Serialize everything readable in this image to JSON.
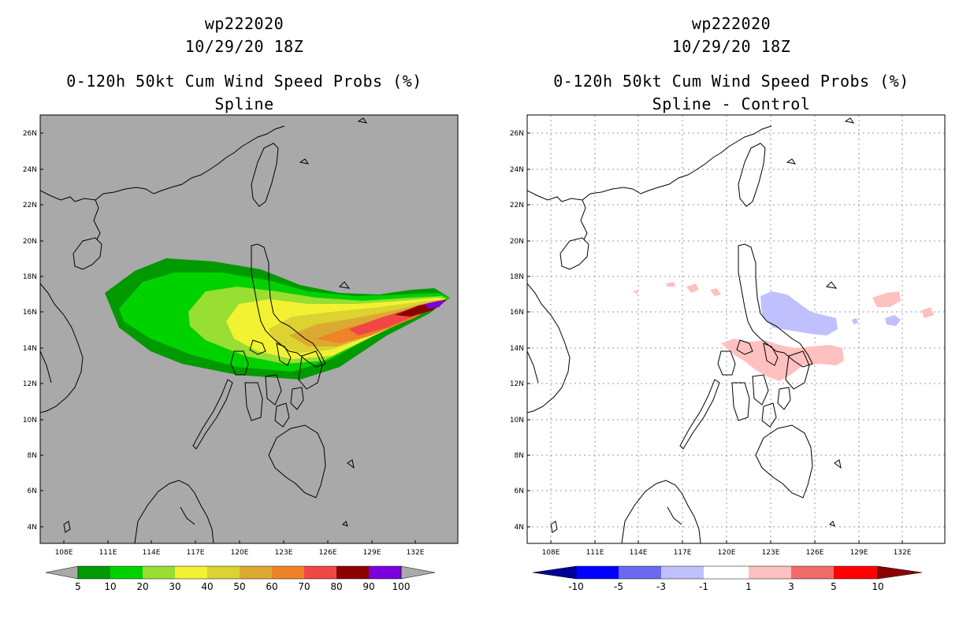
{
  "panels": [
    {
      "storm_id": "wp222020",
      "datetime": "10/29/20 18Z",
      "product": "0-120h 50kt Cum Wind Speed Probs (%)",
      "subtitle": "Spline",
      "background": "#a9a9a9"
    },
    {
      "storm_id": "wp222020",
      "datetime": "10/29/20 18Z",
      "product": "0-120h 50kt Cum Wind Speed Probs (%)",
      "subtitle": "Spline - Control",
      "background": "#ffffff"
    }
  ],
  "axes": {
    "lon_labels": [
      "108E",
      "111E",
      "114E",
      "117E",
      "120E",
      "123E",
      "126E",
      "129E",
      "132E"
    ],
    "lat_labels": [
      "26N",
      "24N",
      "22N",
      "20N",
      "18N",
      "16N",
      "14N",
      "12N",
      "10N",
      "8N",
      "6N",
      "4N"
    ]
  },
  "colorbar_left": {
    "labels": [
      "5",
      "10",
      "20",
      "30",
      "40",
      "50",
      "60",
      "70",
      "80",
      "90",
      "100"
    ],
    "colors": [
      "#009a00",
      "#00d200",
      "#99de32",
      "#f2f232",
      "#dcd232",
      "#dcaa32",
      "#f08228",
      "#f04646",
      "#8c0000",
      "#7b00dc"
    ]
  },
  "colorbar_right": {
    "labels": [
      "-10",
      "-5",
      "-3",
      "-1",
      "1",
      "3",
      "5",
      "10"
    ],
    "colors": [
      "#0000ff",
      "#6a6af0",
      "#c0c0ff",
      "#ffffff",
      "#ffc0c0",
      "#f06a6a",
      "#ff0000"
    ],
    "end_colors": [
      "#000096",
      "#8c0000"
    ]
  }
}
